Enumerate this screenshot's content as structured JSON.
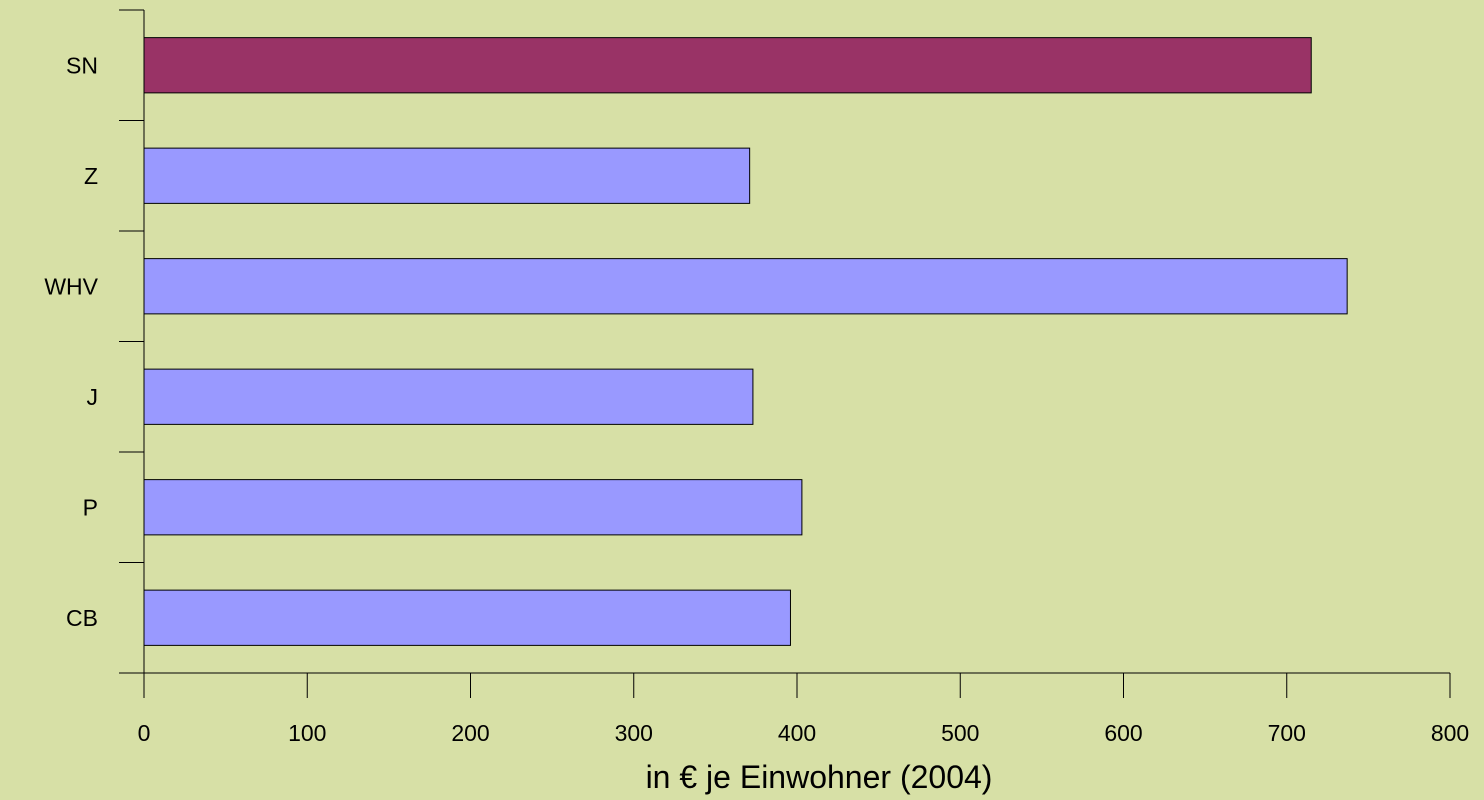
{
  "chart_data": {
    "type": "bar",
    "orientation": "horizontal",
    "categories": [
      "SN",
      "Z",
      "WHV",
      "J",
      "P",
      "CB"
    ],
    "values": [
      715,
      371,
      737,
      373,
      403,
      396
    ],
    "bar_colors": [
      "#993366",
      "#9999ff",
      "#9999ff",
      "#9999ff",
      "#9999ff",
      "#9999ff"
    ],
    "xlabel": "in € je Einwohner (2004)",
    "xlim": [
      0,
      800
    ],
    "xticks": [
      0,
      100,
      200,
      300,
      400,
      500,
      600,
      700,
      800
    ],
    "xtick_labels": [
      "0",
      "100",
      "200",
      "300",
      "400",
      "500",
      "600",
      "700",
      "800"
    ],
    "grid": false,
    "background": "#d7e0a6"
  }
}
